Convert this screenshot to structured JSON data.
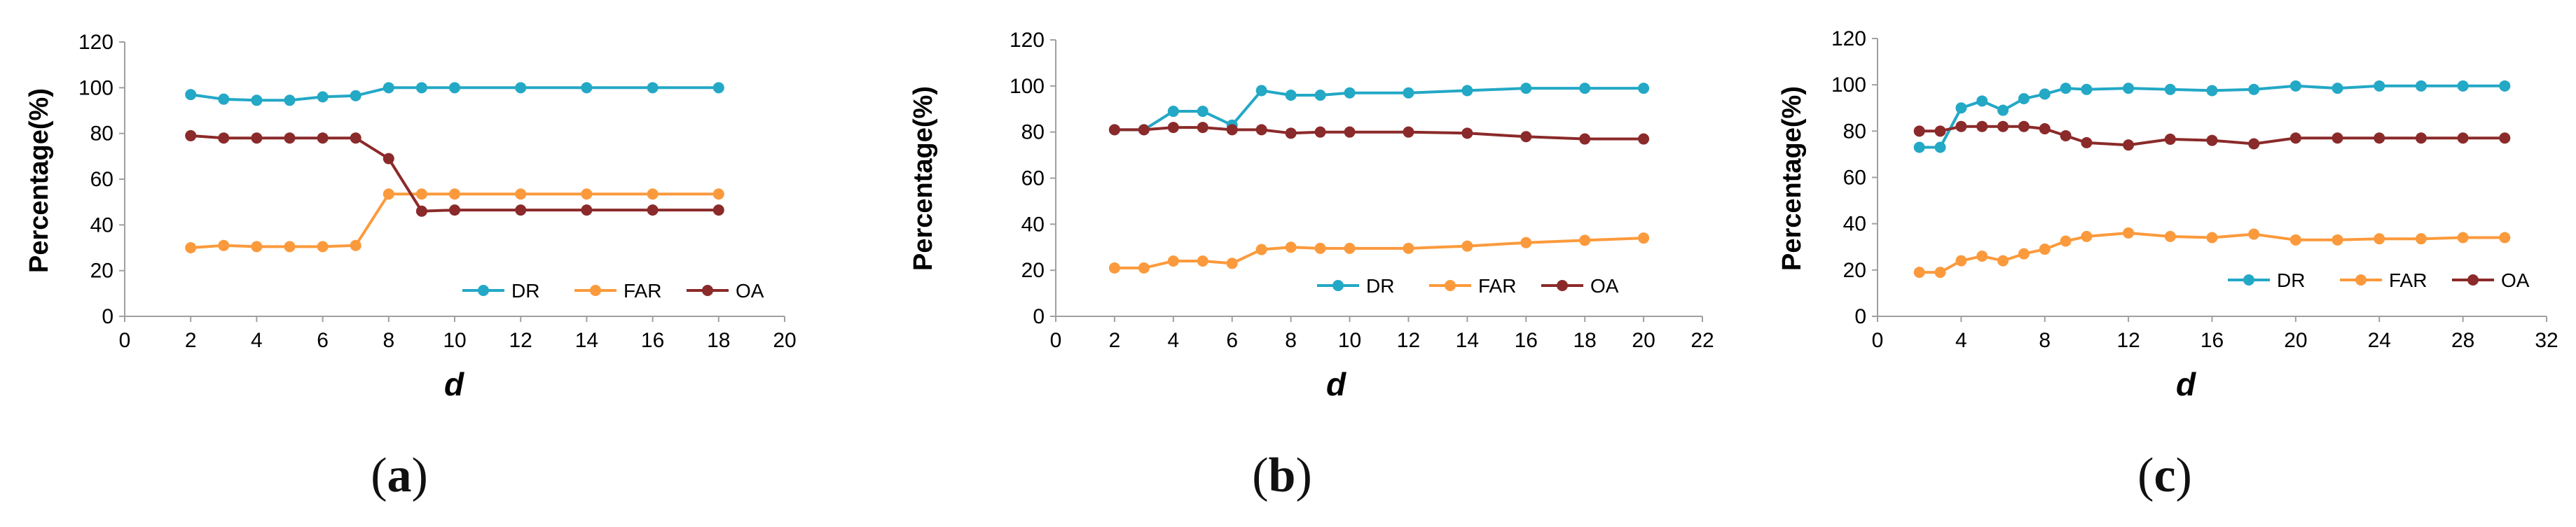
{
  "colors": {
    "dr": "#23A8C6",
    "far": "#FB9A3C",
    "oa": "#8B2A2A",
    "axis": "#A0A0A0"
  },
  "chart_data": [
    {
      "type": "line",
      "caption": {
        "open": "(",
        "letter": "a",
        "close": ")"
      },
      "xlabel": "d",
      "ylabel": "Percentage(%)",
      "xlim": [
        0,
        20
      ],
      "xticks": [
        0,
        2,
        4,
        6,
        8,
        10,
        12,
        14,
        16,
        18,
        20
      ],
      "ylim": [
        0,
        120
      ],
      "yticks": [
        0,
        20,
        40,
        60,
        80,
        100,
        120
      ],
      "legend_position": "bottom-right",
      "x": [
        2,
        3,
        4,
        5,
        6,
        7,
        8,
        9,
        10,
        12,
        14,
        16,
        18
      ],
      "series": [
        {
          "name": "DR",
          "values": [
            97,
            95,
            94.5,
            94.5,
            96,
            96.5,
            100,
            100,
            100,
            100,
            100,
            100,
            100
          ]
        },
        {
          "name": "FAR",
          "values": [
            30,
            31,
            30.5,
            30.5,
            30.5,
            31,
            53.5,
            53.5,
            53.5,
            53.5,
            53.5,
            53.5,
            53.5
          ]
        },
        {
          "name": "OA",
          "values": [
            79,
            78,
            78,
            78,
            78,
            78,
            69,
            46,
            46.5,
            46.5,
            46.5,
            46.5,
            46.5
          ]
        }
      ]
    },
    {
      "type": "line",
      "caption": {
        "open": "(",
        "letter": "b",
        "close": ")"
      },
      "xlabel": "d",
      "ylabel": "Percentage(%)",
      "xlim": [
        0,
        22
      ],
      "xticks": [
        0,
        2,
        4,
        6,
        8,
        10,
        12,
        14,
        16,
        18,
        20,
        22
      ],
      "ylim": [
        0,
        120
      ],
      "yticks": [
        0,
        20,
        40,
        60,
        80,
        100,
        120
      ],
      "legend_position": "bottom-right",
      "x": [
        2,
        3,
        4,
        5,
        6,
        7,
        8,
        9,
        10,
        12,
        14,
        16,
        18,
        20
      ],
      "series": [
        {
          "name": "DR",
          "values": [
            81,
            81,
            89,
            89,
            83,
            98,
            96,
            96,
            97,
            97,
            98,
            99,
            99,
            99
          ]
        },
        {
          "name": "FAR",
          "values": [
            21,
            21,
            24,
            24,
            23,
            29,
            30,
            29.5,
            29.5,
            29.5,
            30.5,
            32,
            33,
            34
          ]
        },
        {
          "name": "OA",
          "values": [
            81,
            81,
            82,
            82,
            81,
            81,
            79.5,
            80,
            80,
            80,
            79.5,
            78,
            77,
            77
          ]
        }
      ]
    },
    {
      "type": "line",
      "caption": {
        "open": "(",
        "letter": "c",
        "close": ")"
      },
      "xlabel": "d",
      "ylabel": "Percentage(%)",
      "xlim": [
        0,
        32
      ],
      "xticks": [
        0,
        4,
        8,
        12,
        16,
        20,
        24,
        28,
        32
      ],
      "ylim": [
        0,
        120
      ],
      "yticks": [
        0,
        20,
        40,
        60,
        80,
        100,
        120
      ],
      "legend_position": "bottom-right",
      "x": [
        2,
        3,
        4,
        5,
        6,
        7,
        8,
        9,
        10,
        12,
        14,
        16,
        18,
        20,
        22,
        24,
        26,
        28,
        30
      ],
      "series": [
        {
          "name": "DR",
          "values": [
            73,
            73,
            90,
            93,
            89,
            94,
            96,
            98.5,
            98,
            98.5,
            98,
            97.5,
            98,
            99.5,
            98.5,
            99.5,
            99.5,
            99.5,
            99.5
          ]
        },
        {
          "name": "FAR",
          "values": [
            19,
            19,
            24,
            26,
            24,
            27,
            29,
            32.5,
            34.5,
            36,
            34.5,
            34,
            35.5,
            33,
            33,
            33.5,
            33.5,
            34,
            34
          ]
        },
        {
          "name": "OA",
          "values": [
            80,
            80,
            82,
            82,
            82,
            82,
            81,
            78,
            75,
            74,
            76.5,
            76,
            74.5,
            77,
            77,
            77,
            77,
            77,
            77
          ]
        }
      ]
    }
  ]
}
